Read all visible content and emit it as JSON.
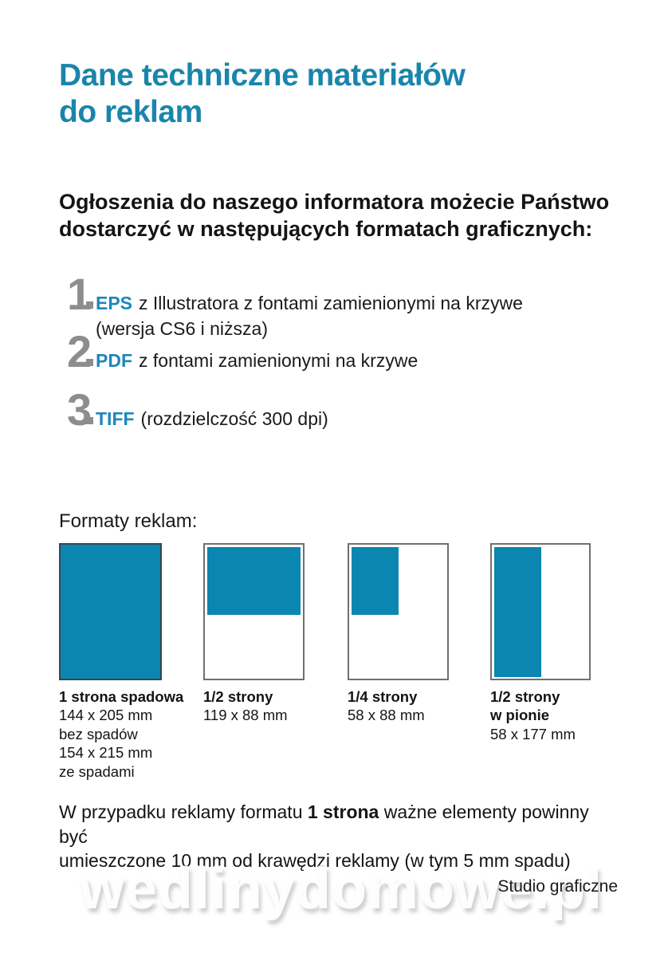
{
  "header": {
    "title_line1": "Dane techniczne materiałów",
    "title_line2": "do reklam",
    "intro_line1": "Ogłoszenia do naszego informatora możecie Państwo",
    "intro_line2": "dostarczyć w następujących formatach graficznych:"
  },
  "format_list": [
    {
      "number": "1",
      "keyword": "EPS",
      "text": "z Illustratora z fontami zamienionymi na krzywe",
      "note": "(wersja CS6 i niższa)"
    },
    {
      "number": "2",
      "keyword": "PDF",
      "text": "z fontami zamienionymi na krzywe"
    },
    {
      "number": "3",
      "keyword": "TIFF",
      "text": "(rozdzielczość 300 dpi)"
    }
  ],
  "formats_section": {
    "heading": "Formaty reklam:",
    "items": [
      {
        "name": "1 strona spadowa",
        "dims": [
          "144 x 205 mm",
          "bez spadów",
          "154 x 215 mm",
          "ze spadami"
        ]
      },
      {
        "name": "1/2 strony",
        "dims": [
          "119 x 88 mm"
        ]
      },
      {
        "name": "1/4 strony",
        "dims": [
          "58 x 88 mm"
        ]
      },
      {
        "name": "1/2 strony",
        "name2": "w pionie",
        "dims": [
          "58 x 177 mm"
        ]
      }
    ]
  },
  "note": {
    "pre": "W przypadku reklamy formatu ",
    "bold": "1 strona",
    "post": " ważne elementy powinny być",
    "line2": "umieszczone 10 mm od krawędzi reklamy (w tym 5 mm spadu)"
  },
  "footer": {
    "studio": "Studio graficzne",
    "watermark": "wedlinydomowe.pl"
  },
  "colors": {
    "title_teal": "#1A85AB",
    "diagram_fill_teal": "#0B86B1",
    "keyword_blue": "#1D87BA",
    "number_gray": "#8D8D8D"
  }
}
